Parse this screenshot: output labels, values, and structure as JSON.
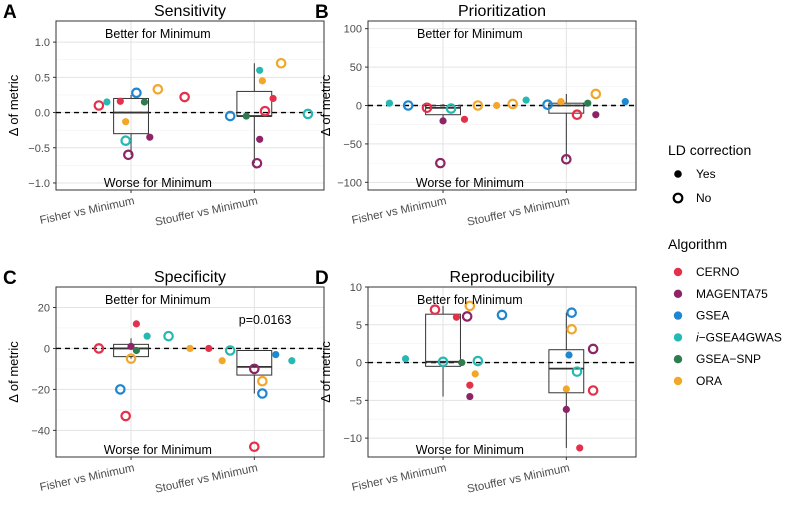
{
  "chart_data": [
    {
      "type": "scatter",
      "panel_letter": "A",
      "title": "Sensitivity",
      "ylabel": "Δ of metric",
      "ylim": [
        -1.1,
        1.3
      ],
      "yticks": [
        -1.0,
        -0.5,
        0.0,
        0.5,
        1.0
      ],
      "ytick_labels": [
        "−1.0",
        "−0.5",
        "0.0",
        "0.5",
        "1.0"
      ],
      "categories": [
        "Fisher vs Minimum",
        "Stouffer vs Minimum"
      ],
      "better_label": "Better for Minimum",
      "worse_label": "Worse for Minimum",
      "pvalue": "",
      "boxes": [
        {
          "q1": -0.3,
          "median": 0.0,
          "q3": 0.2,
          "min": -0.6,
          "max": 0.25
        },
        {
          "q1": -0.05,
          "median": -0.05,
          "q3": 0.3,
          "min": -0.72,
          "max": 0.7
        }
      ],
      "points": [
        {
          "category": 0,
          "offset": -0.12,
          "value": 0.1,
          "algorithm": "CERNO",
          "ld": "No"
        },
        {
          "category": 0,
          "offset": 0.2,
          "value": 0.22,
          "algorithm": "CERNO",
          "ld": "No"
        },
        {
          "category": 0,
          "offset": -0.04,
          "value": 0.16,
          "algorithm": "CERNO",
          "ld": "Yes"
        },
        {
          "category": 0,
          "offset": -0.01,
          "value": -0.6,
          "algorithm": "MAGENTA75",
          "ld": "No"
        },
        {
          "category": 0,
          "offset": 0.07,
          "value": -0.35,
          "algorithm": "MAGENTA75",
          "ld": "Yes"
        },
        {
          "category": 0,
          "offset": 0.02,
          "value": 0.28,
          "algorithm": "GSEA",
          "ld": "No"
        },
        {
          "category": 0,
          "offset": -0.02,
          "value": -0.4,
          "algorithm": "i-GSEA4GWAS",
          "ld": "No"
        },
        {
          "category": 0,
          "offset": -0.09,
          "value": 0.15,
          "algorithm": "i-GSEA4GWAS",
          "ld": "Yes"
        },
        {
          "category": 0,
          "offset": 0.05,
          "value": 0.15,
          "algorithm": "GSEA-SNP",
          "ld": "Yes"
        },
        {
          "category": 0,
          "offset": 0.1,
          "value": 0.33,
          "algorithm": "ORA",
          "ld": "No"
        },
        {
          "category": 0,
          "offset": -0.02,
          "value": -0.13,
          "algorithm": "ORA",
          "ld": "Yes"
        },
        {
          "category": 1,
          "offset": 0.04,
          "value": 0.02,
          "algorithm": "CERNO",
          "ld": "No"
        },
        {
          "category": 1,
          "offset": 0.07,
          "value": 0.2,
          "algorithm": "CERNO",
          "ld": "Yes"
        },
        {
          "category": 1,
          "offset": 0.01,
          "value": -0.72,
          "algorithm": "MAGENTA75",
          "ld": "No"
        },
        {
          "category": 1,
          "offset": 0.02,
          "value": -0.38,
          "algorithm": "MAGENTA75",
          "ld": "Yes"
        },
        {
          "category": 1,
          "offset": -0.09,
          "value": -0.05,
          "algorithm": "GSEA",
          "ld": "No"
        },
        {
          "category": 1,
          "offset": 0.2,
          "value": -0.02,
          "algorithm": "i-GSEA4GWAS",
          "ld": "No"
        },
        {
          "category": 1,
          "offset": 0.02,
          "value": 0.6,
          "algorithm": "i-GSEA4GWAS",
          "ld": "Yes"
        },
        {
          "category": 1,
          "offset": -0.03,
          "value": -0.05,
          "algorithm": "GSEA-SNP",
          "ld": "Yes"
        },
        {
          "category": 1,
          "offset": 0.1,
          "value": 0.7,
          "algorithm": "ORA",
          "ld": "No"
        },
        {
          "category": 1,
          "offset": 0.03,
          "value": 0.45,
          "algorithm": "ORA",
          "ld": "Yes"
        }
      ]
    },
    {
      "type": "scatter",
      "panel_letter": "B",
      "title": "Prioritization",
      "ylabel": "Δ of metric",
      "ylim": [
        -110,
        110
      ],
      "yticks": [
        -100,
        -50,
        0,
        50,
        100
      ],
      "ytick_labels": [
        "−100",
        "−50",
        "0",
        "50",
        "100"
      ],
      "categories": [
        "Fisher vs Minimum",
        "Stouffer vs Minimum"
      ],
      "better_label": "Better for Minimum",
      "worse_label": "Worse for Minimum",
      "pvalue": "",
      "boxes": [
        {
          "q1": -12,
          "median": -3,
          "q3": 0,
          "min": -20,
          "max": 2
        },
        {
          "q1": -10,
          "median": 0,
          "q3": 3,
          "min": -70,
          "max": 15
        }
      ],
      "points": [
        {
          "category": 0,
          "offset": -0.2,
          "value": 3,
          "algorithm": "i-GSEA4GWAS",
          "ld": "Yes"
        },
        {
          "category": 0,
          "offset": -0.13,
          "value": 0,
          "algorithm": "GSEA",
          "ld": "No"
        },
        {
          "category": 0,
          "offset": -0.06,
          "value": -3,
          "algorithm": "CERNO",
          "ld": "No"
        },
        {
          "category": 0,
          "offset": -0.01,
          "value": -75,
          "algorithm": "MAGENTA75",
          "ld": "No"
        },
        {
          "category": 0,
          "offset": 0.0,
          "value": -20,
          "algorithm": "MAGENTA75",
          "ld": "Yes"
        },
        {
          "category": 0,
          "offset": 0.03,
          "value": -4,
          "algorithm": "i-GSEA4GWAS",
          "ld": "No"
        },
        {
          "category": 0,
          "offset": 0.08,
          "value": -18,
          "algorithm": "CERNO",
          "ld": "Yes"
        },
        {
          "category": 0,
          "offset": 0.13,
          "value": 0,
          "algorithm": "ORA",
          "ld": "No"
        },
        {
          "category": 0,
          "offset": 0.2,
          "value": 0,
          "algorithm": "ORA",
          "ld": "Yes"
        },
        {
          "category": 0,
          "offset": 0.26,
          "value": 2,
          "algorithm": "ORA",
          "ld": "No"
        },
        {
          "category": 1,
          "offset": -0.15,
          "value": 7,
          "algorithm": "i-GSEA4GWAS",
          "ld": "Yes"
        },
        {
          "category": 1,
          "offset": -0.07,
          "value": 1,
          "algorithm": "GSEA",
          "ld": "No"
        },
        {
          "category": 1,
          "offset": -0.02,
          "value": 5,
          "algorithm": "ORA",
          "ld": "Yes"
        },
        {
          "category": 1,
          "offset": 0.0,
          "value": -70,
          "algorithm": "MAGENTA75",
          "ld": "No"
        },
        {
          "category": 1,
          "offset": 0.04,
          "value": -12,
          "algorithm": "CERNO",
          "ld": "No"
        },
        {
          "category": 1,
          "offset": 0.08,
          "value": 3,
          "algorithm": "GSEA-SNP",
          "ld": "Yes"
        },
        {
          "category": 1,
          "offset": 0.11,
          "value": 15,
          "algorithm": "ORA",
          "ld": "No"
        },
        {
          "category": 1,
          "offset": 0.11,
          "value": -12,
          "algorithm": "MAGENTA75",
          "ld": "Yes"
        },
        {
          "category": 1,
          "offset": 0.22,
          "value": 5,
          "algorithm": "GSEA",
          "ld": "Yes"
        }
      ]
    },
    {
      "type": "scatter",
      "panel_letter": "C",
      "title": "Specificity",
      "ylabel": "Δ of metric",
      "ylim": [
        -53,
        30
      ],
      "yticks": [
        -40,
        -20,
        0,
        20
      ],
      "ytick_labels": [
        "−40",
        "−20",
        "0",
        "20"
      ],
      "categories": [
        "Fisher vs Minimum",
        "Stouffer vs Minimum"
      ],
      "better_label": "Better for Minimum",
      "worse_label": "Worse for Minimum",
      "pvalue": "p=0.0163",
      "boxes": [
        {
          "q1": -4,
          "median": 0,
          "q3": 2,
          "min": -5,
          "max": 5
        },
        {
          "q1": -13,
          "median": -9,
          "q3": -1,
          "min": -22,
          "max": 0
        }
      ],
      "points": [
        {
          "category": 0,
          "offset": -0.12,
          "value": 0,
          "algorithm": "CERNO",
          "ld": "No"
        },
        {
          "category": 0,
          "offset": 0.02,
          "value": 12,
          "algorithm": "CERNO",
          "ld": "Yes"
        },
        {
          "category": 0,
          "offset": -0.02,
          "value": -33,
          "algorithm": "CERNO",
          "ld": "No"
        },
        {
          "category": 0,
          "offset": 0.0,
          "value": 1,
          "algorithm": "MAGENTA75",
          "ld": "Yes"
        },
        {
          "category": 0,
          "offset": -0.04,
          "value": -20,
          "algorithm": "GSEA",
          "ld": "No"
        },
        {
          "category": 0,
          "offset": 0.06,
          "value": 6,
          "algorithm": "i-GSEA4GWAS",
          "ld": "Yes"
        },
        {
          "category": 0,
          "offset": 0.14,
          "value": 6,
          "algorithm": "i-GSEA4GWAS",
          "ld": "No"
        },
        {
          "category": 0,
          "offset": 0.02,
          "value": -1,
          "algorithm": "GSEA-SNP",
          "ld": "Yes"
        },
        {
          "category": 0,
          "offset": 0.0,
          "value": -5,
          "algorithm": "ORA",
          "ld": "No"
        },
        {
          "category": 0,
          "offset": 0.22,
          "value": 0,
          "algorithm": "ORA",
          "ld": "Yes"
        },
        {
          "category": 1,
          "offset": -0.17,
          "value": 0,
          "algorithm": "CERNO",
          "ld": "Yes"
        },
        {
          "category": 1,
          "offset": 0.0,
          "value": -48,
          "algorithm": "CERNO",
          "ld": "No"
        },
        {
          "category": 1,
          "offset": 0.0,
          "value": -10,
          "algorithm": "MAGENTA75",
          "ld": "No"
        },
        {
          "category": 1,
          "offset": 0.08,
          "value": -3,
          "algorithm": "GSEA",
          "ld": "Yes"
        },
        {
          "category": 1,
          "offset": 0.03,
          "value": -22,
          "algorithm": "GSEA",
          "ld": "No"
        },
        {
          "category": 1,
          "offset": -0.09,
          "value": -1,
          "algorithm": "i-GSEA4GWAS",
          "ld": "No"
        },
        {
          "category": 1,
          "offset": 0.14,
          "value": -6,
          "algorithm": "i-GSEA4GWAS",
          "ld": "Yes"
        },
        {
          "category": 1,
          "offset": -0.12,
          "value": -6,
          "algorithm": "ORA",
          "ld": "Yes"
        },
        {
          "category": 1,
          "offset": 0.03,
          "value": -16,
          "algorithm": "ORA",
          "ld": "No"
        }
      ]
    },
    {
      "type": "scatter",
      "panel_letter": "D",
      "title": "Reproducibility",
      "ylabel": "Δ of metric",
      "ylim": [
        -12.5,
        10
      ],
      "yticks": [
        -10,
        -5,
        0,
        5,
        10
      ],
      "ytick_labels": [
        "−10",
        "−5",
        "0",
        "5",
        "10"
      ],
      "categories": [
        "Fisher vs Minimum",
        "Stouffer vs Minimum"
      ],
      "better_label": "Better for Minimum",
      "worse_label": "Worse for Minimum",
      "pvalue": "",
      "boxes": [
        {
          "q1": -0.5,
          "median": 0.1,
          "q3": 6.4,
          "min": -4.5,
          "max": 7.5
        },
        {
          "q1": -4.0,
          "median": -0.8,
          "q3": 1.7,
          "min": -11.3,
          "max": 6.6
        }
      ],
      "points": [
        {
          "category": 0,
          "offset": -0.03,
          "value": 7.0,
          "algorithm": "CERNO",
          "ld": "No"
        },
        {
          "category": 0,
          "offset": 0.05,
          "value": 6.0,
          "algorithm": "CERNO",
          "ld": "Yes"
        },
        {
          "category": 0,
          "offset": 0.1,
          "value": -3.0,
          "algorithm": "CERNO",
          "ld": "Yes"
        },
        {
          "category": 0,
          "offset": 0.09,
          "value": 6.1,
          "algorithm": "MAGENTA75",
          "ld": "No"
        },
        {
          "category": 0,
          "offset": 0.1,
          "value": -4.5,
          "algorithm": "MAGENTA75",
          "ld": "Yes"
        },
        {
          "category": 0,
          "offset": 0.22,
          "value": 6.3,
          "algorithm": "GSEA",
          "ld": "No"
        },
        {
          "category": 0,
          "offset": -0.14,
          "value": 0.5,
          "algorithm": "i-GSEA4GWAS",
          "ld": "Yes"
        },
        {
          "category": 0,
          "offset": 0.0,
          "value": 0.1,
          "algorithm": "i-GSEA4GWAS",
          "ld": "No"
        },
        {
          "category": 0,
          "offset": 0.13,
          "value": 0.2,
          "algorithm": "i-GSEA4GWAS",
          "ld": "No"
        },
        {
          "category": 0,
          "offset": 0.07,
          "value": 0.0,
          "algorithm": "GSEA-SNP",
          "ld": "Yes"
        },
        {
          "category": 0,
          "offset": 0.1,
          "value": 7.5,
          "algorithm": "ORA",
          "ld": "No"
        },
        {
          "category": 0,
          "offset": 0.12,
          "value": -1.5,
          "algorithm": "ORA",
          "ld": "Yes"
        },
        {
          "category": 1,
          "offset": 0.1,
          "value": -3.7,
          "algorithm": "CERNO",
          "ld": "No"
        },
        {
          "category": 1,
          "offset": 0.05,
          "value": -11.3,
          "algorithm": "CERNO",
          "ld": "Yes"
        },
        {
          "category": 1,
          "offset": 0.1,
          "value": 1.8,
          "algorithm": "MAGENTA75",
          "ld": "No"
        },
        {
          "category": 1,
          "offset": 0.0,
          "value": -6.2,
          "algorithm": "MAGENTA75",
          "ld": "Yes"
        },
        {
          "category": 1,
          "offset": 0.02,
          "value": 6.6,
          "algorithm": "GSEA",
          "ld": "No"
        },
        {
          "category": 1,
          "offset": 0.01,
          "value": 1.0,
          "algorithm": "GSEA",
          "ld": "Yes"
        },
        {
          "category": 1,
          "offset": 0.04,
          "value": -1.2,
          "algorithm": "i-GSEA4GWAS",
          "ld": "No"
        },
        {
          "category": 1,
          "offset": 0.02,
          "value": 4.4,
          "algorithm": "ORA",
          "ld": "No"
        },
        {
          "category": 1,
          "offset": 0.0,
          "value": -3.5,
          "algorithm": "ORA",
          "ld": "Yes"
        }
      ]
    }
  ],
  "legend": {
    "ld_title": "LD correction",
    "ld_items": [
      {
        "key": "Yes",
        "label": "Yes"
      },
      {
        "key": "No",
        "label": "No"
      }
    ],
    "algorithm_title": "Algorithm",
    "algorithms": [
      {
        "name": "CERNO",
        "label": "CERNO",
        "color": "#e5304b"
      },
      {
        "name": "MAGENTA75",
        "label": "MAGENTA75",
        "color": "#8c2465"
      },
      {
        "name": "GSEA",
        "label": "GSEA",
        "color": "#1f86d0"
      },
      {
        "name": "i-GSEA4GWAS",
        "label": "i−GSEA4GWAS",
        "color": "#26b9b4"
      },
      {
        "name": "GSEA-SNP",
        "label": "GSEA−SNP",
        "color": "#2d7d4e"
      },
      {
        "name": "ORA",
        "label": "ORA",
        "color": "#f2a72a"
      }
    ]
  }
}
